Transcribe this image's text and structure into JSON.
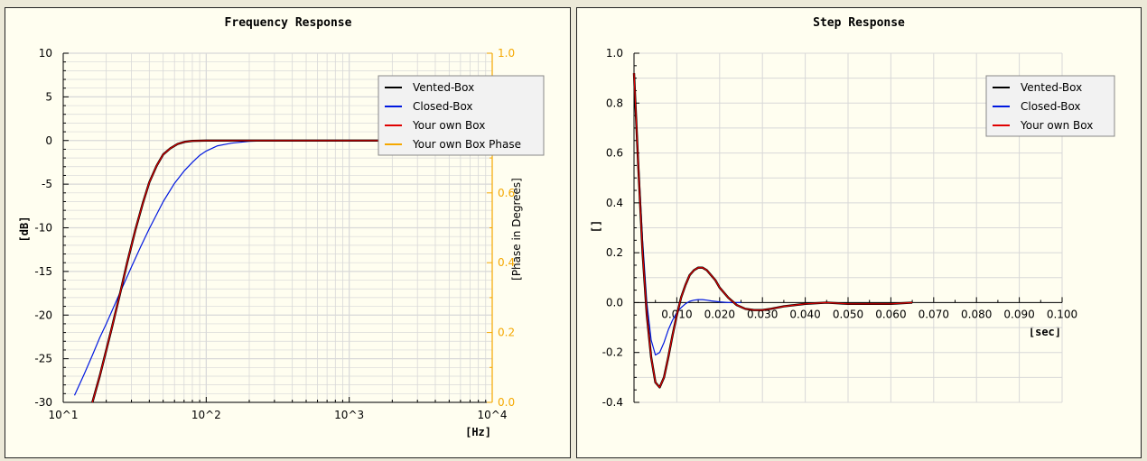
{
  "chart_data": [
    {
      "type": "line",
      "title": "Frequency Response",
      "xlabel": "[Hz]",
      "ylabel": "[dB]",
      "y2label": "[Phase in Degrees]",
      "xscale": "log",
      "xlim": [
        10,
        10000
      ],
      "ylim": [
        -30,
        10
      ],
      "y2lim": [
        0.0,
        1.0
      ],
      "x_ticks": [
        "10^1",
        "10^2",
        "10^3",
        "10^4"
      ],
      "y_ticks": [
        "10",
        "5",
        "0",
        "-5",
        "-10",
        "-15",
        "-20",
        "-25",
        "-30"
      ],
      "y2_ticks": [
        "1.0",
        "0.8",
        "0.6",
        "0.4",
        "0.2",
        "0.0"
      ],
      "grid": true,
      "legend_position": "top-right",
      "series": [
        {
          "name": "Vented-Box",
          "color": "#000000",
          "x": [
            16,
            18,
            20,
            22,
            25,
            28,
            32,
            36,
            40,
            45,
            50,
            56,
            63,
            71,
            80,
            100,
            150,
            200,
            500,
            1000,
            2000
          ],
          "y": [
            -30,
            -27,
            -24,
            -21.3,
            -17.5,
            -14,
            -10.2,
            -7.2,
            -4.8,
            -2.9,
            -1.6,
            -0.9,
            -0.4,
            -0.15,
            -0.05,
            0,
            0,
            0,
            0,
            0,
            0
          ]
        },
        {
          "name": "Closed-Box",
          "color": "#0018e0",
          "x": [
            12,
            14,
            16,
            18,
            20,
            25,
            30,
            35,
            40,
            50,
            60,
            70,
            80,
            90,
            100,
            120,
            150,
            200,
            300,
            500,
            1000,
            2000
          ],
          "y": [
            -29.2,
            -26.8,
            -24.6,
            -22.6,
            -21,
            -17.4,
            -14.5,
            -12.1,
            -10.1,
            -7,
            -4.9,
            -3.5,
            -2.5,
            -1.7,
            -1.2,
            -0.6,
            -0.3,
            -0.1,
            0,
            0,
            0,
            0
          ]
        },
        {
          "name": "Your own Box",
          "color": "#e00000",
          "x": [
            16,
            18,
            20,
            22,
            25,
            28,
            32,
            36,
            40,
            45,
            50,
            56,
            63,
            71,
            80,
            100,
            150,
            200,
            500,
            1000,
            2000
          ],
          "y": [
            -30,
            -27,
            -24,
            -21.3,
            -17.5,
            -14,
            -10.2,
            -7.2,
            -4.8,
            -2.9,
            -1.6,
            -0.9,
            -0.4,
            -0.15,
            -0.05,
            0,
            0,
            0,
            0,
            0,
            0
          ]
        },
        {
          "name": "Your own Box Phase",
          "color": "#f5a800",
          "x": [],
          "y": []
        }
      ]
    },
    {
      "type": "line",
      "title": "Step Response",
      "xlabel": "[sec]",
      "ylabel": "[]",
      "xlim": [
        0,
        0.1
      ],
      "ylim": [
        -0.4,
        1.0
      ],
      "x_ticks": [
        "0.010",
        "0.020",
        "0.030",
        "0.040",
        "0.050",
        "0.060",
        "0.070",
        "0.080",
        "0.090",
        "0.100"
      ],
      "y_ticks": [
        "1.0",
        "0.8",
        "0.6",
        "0.4",
        "0.2",
        "0.0",
        "-0.2",
        "-0.4"
      ],
      "grid": true,
      "legend_position": "top-right",
      "series": [
        {
          "name": "Vented-Box",
          "color": "#000000",
          "x": [
            0,
            0.001,
            0.002,
            0.003,
            0.004,
            0.005,
            0.006,
            0.007,
            0.008,
            0.009,
            0.01,
            0.011,
            0.012,
            0.013,
            0.014,
            0.015,
            0.016,
            0.017,
            0.018,
            0.019,
            0.02,
            0.022,
            0.024,
            0.026,
            0.028,
            0.03,
            0.032,
            0.035,
            0.04,
            0.045,
            0.05,
            0.055,
            0.06,
            0.065
          ],
          "y": [
            0.92,
            0.55,
            0.2,
            -0.05,
            -0.22,
            -0.32,
            -0.34,
            -0.3,
            -0.22,
            -0.13,
            -0.05,
            0.02,
            0.07,
            0.11,
            0.13,
            0.14,
            0.14,
            0.13,
            0.11,
            0.09,
            0.06,
            0.02,
            -0.01,
            -0.025,
            -0.03,
            -0.03,
            -0.025,
            -0.015,
            -0.005,
            0,
            -0.005,
            -0.005,
            -0.005,
            0
          ]
        },
        {
          "name": "Closed-Box",
          "color": "#0018e0",
          "x": [
            0,
            0.001,
            0.002,
            0.003,
            0.004,
            0.005,
            0.006,
            0.007,
            0.008,
            0.009,
            0.01,
            0.011,
            0.012,
            0.013,
            0.014,
            0.015,
            0.016,
            0.017,
            0.018,
            0.02,
            0.022,
            0.025
          ],
          "y": [
            0.92,
            0.58,
            0.25,
            0.0,
            -0.15,
            -0.21,
            -0.2,
            -0.16,
            -0.11,
            -0.07,
            -0.04,
            -0.02,
            -0.005,
            0.005,
            0.01,
            0.012,
            0.012,
            0.01,
            0.007,
            0.003,
            0.0,
            0.0
          ]
        },
        {
          "name": "Your own Box",
          "color": "#e00000",
          "x": [
            0,
            0.001,
            0.002,
            0.003,
            0.004,
            0.005,
            0.006,
            0.007,
            0.008,
            0.009,
            0.01,
            0.011,
            0.012,
            0.013,
            0.014,
            0.015,
            0.016,
            0.017,
            0.018,
            0.019,
            0.02,
            0.022,
            0.024,
            0.026,
            0.028,
            0.03,
            0.032,
            0.035,
            0.04,
            0.045,
            0.05,
            0.055,
            0.06,
            0.065
          ],
          "y": [
            0.92,
            0.55,
            0.2,
            -0.05,
            -0.22,
            -0.32,
            -0.34,
            -0.3,
            -0.22,
            -0.13,
            -0.05,
            0.02,
            0.07,
            0.11,
            0.13,
            0.14,
            0.14,
            0.13,
            0.11,
            0.09,
            0.06,
            0.02,
            -0.01,
            -0.025,
            -0.03,
            -0.03,
            -0.025,
            -0.015,
            -0.005,
            0,
            -0.005,
            -0.005,
            -0.005,
            0
          ]
        }
      ]
    }
  ],
  "colors": {
    "panel_bg": "#fffef0",
    "window_bg": "#ece9d8",
    "grid": "#d8d8d8",
    "phase_axis": "#f5a800"
  }
}
